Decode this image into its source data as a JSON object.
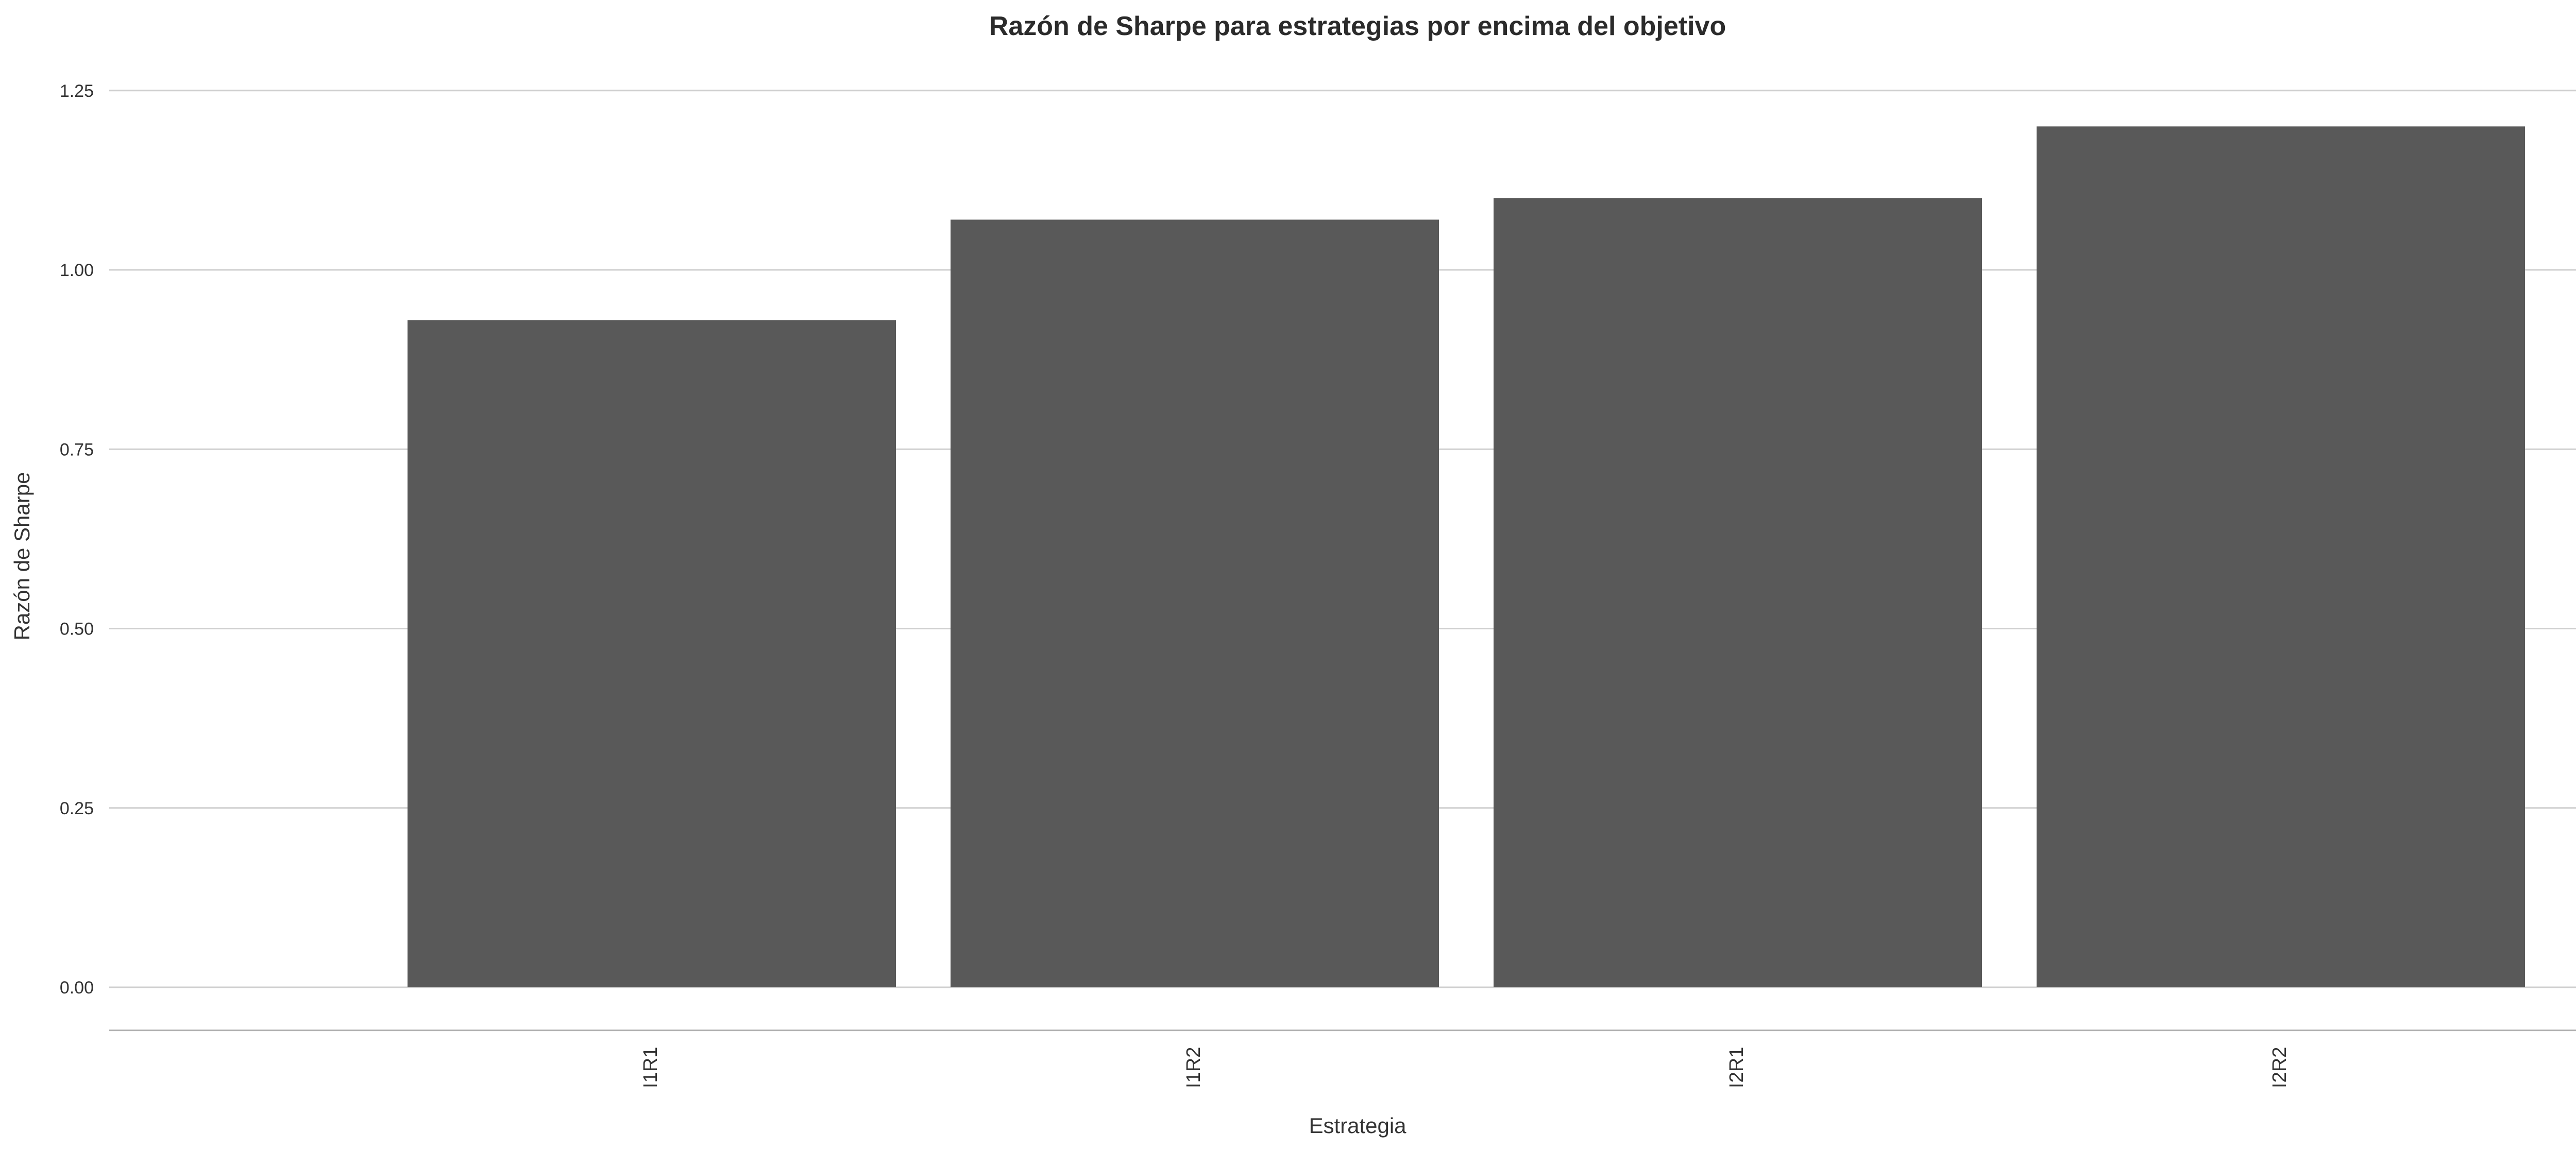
{
  "chart_data": {
    "type": "bar",
    "title": "Razón de Sharpe para estrategias por encima del objetivo",
    "xlabel": "Estrategia",
    "ylabel": "Razón de Sharpe",
    "categories": [
      "I1R1",
      "I1R2",
      "I2R1",
      "I2R2"
    ],
    "values": [
      0.93,
      1.07,
      1.1,
      1.2
    ],
    "ylim": [
      -0.06,
      1.29
    ],
    "yticks": [
      0.0,
      0.25,
      0.5,
      0.75,
      1.0,
      1.25
    ],
    "ytick_labels": [
      "0.00",
      "0.25",
      "0.50",
      "0.75",
      "1.00",
      "1.25"
    ],
    "grid": "horizontal",
    "legend": "none",
    "bar_color": "#595959",
    "grid_color": "#cfcfcf"
  }
}
